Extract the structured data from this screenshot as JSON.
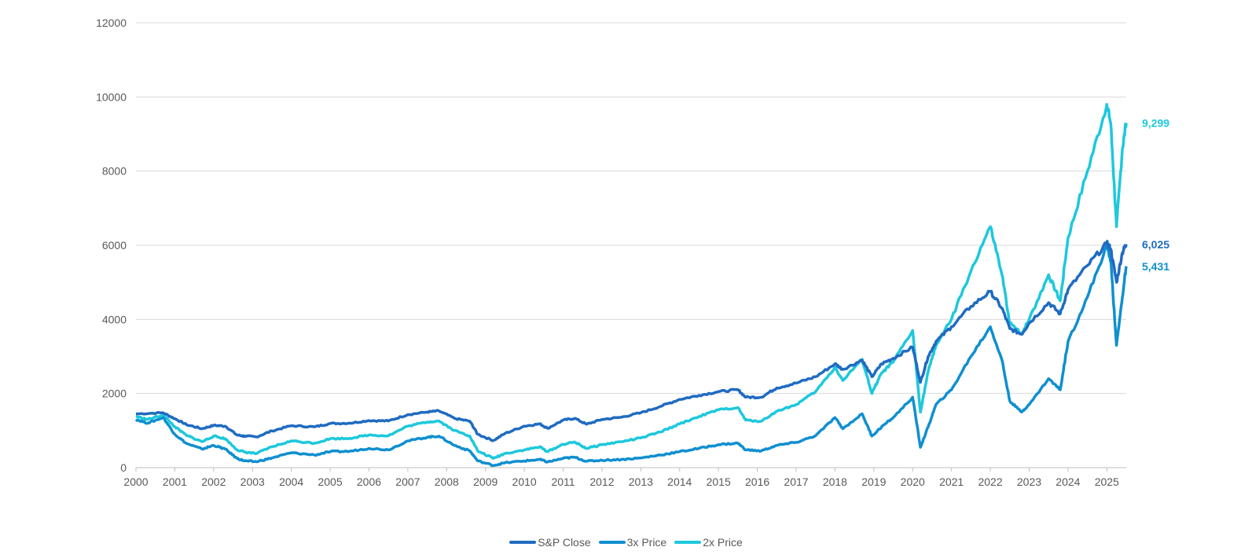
{
  "chart_data": {
    "type": "line",
    "title": "",
    "xlabel": "",
    "ylabel": "",
    "xlim": [
      2000,
      2025.5
    ],
    "ylim": [
      0,
      12000
    ],
    "y_ticks": [
      "0",
      "2000",
      "4000",
      "6000",
      "8000",
      "10000",
      "12000"
    ],
    "x_ticks": [
      "2000",
      "2001",
      "2002",
      "2003",
      "2004",
      "2005",
      "2006",
      "2007",
      "2008",
      "2009",
      "2010",
      "2011",
      "2012",
      "2013",
      "2014",
      "2015",
      "2016",
      "2017",
      "2018",
      "2019",
      "2020",
      "2021",
      "2022",
      "2023",
      "2024",
      "2025"
    ],
    "grid": "horizontal",
    "legend_position": "bottom",
    "series": [
      {
        "name": "S&P Close",
        "color": "#1f6bc1",
        "end_label": "6,025",
        "points": [
          [
            2000,
            1450
          ],
          [
            2000.7,
            1480
          ],
          [
            2001.0,
            1320
          ],
          [
            2001.3,
            1160
          ],
          [
            2001.7,
            1050
          ],
          [
            2002.0,
            1140
          ],
          [
            2002.3,
            1120
          ],
          [
            2002.6,
            880
          ],
          [
            2002.8,
            850
          ],
          [
            2003.1,
            830
          ],
          [
            2003.5,
            990
          ],
          [
            2004.0,
            1130
          ],
          [
            2004.6,
            1100
          ],
          [
            2005.0,
            1190
          ],
          [
            2005.5,
            1200
          ],
          [
            2006.0,
            1270
          ],
          [
            2006.5,
            1260
          ],
          [
            2007.0,
            1430
          ],
          [
            2007.5,
            1500
          ],
          [
            2007.8,
            1530
          ],
          [
            2008.2,
            1330
          ],
          [
            2008.6,
            1250
          ],
          [
            2008.8,
            900
          ],
          [
            2009.2,
            730
          ],
          [
            2009.5,
            920
          ],
          [
            2010.0,
            1120
          ],
          [
            2010.4,
            1180
          ],
          [
            2010.6,
            1060
          ],
          [
            2011.0,
            1280
          ],
          [
            2011.3,
            1330
          ],
          [
            2011.6,
            1170
          ],
          [
            2012.0,
            1300
          ],
          [
            2012.5,
            1360
          ],
          [
            2013.0,
            1480
          ],
          [
            2013.5,
            1650
          ],
          [
            2014.0,
            1840
          ],
          [
            2014.5,
            1950
          ],
          [
            2015.0,
            2050
          ],
          [
            2015.5,
            2100
          ],
          [
            2015.7,
            1900
          ],
          [
            2016.1,
            1900
          ],
          [
            2016.5,
            2150
          ],
          [
            2017.0,
            2280
          ],
          [
            2017.5,
            2450
          ],
          [
            2018.0,
            2800
          ],
          [
            2018.2,
            2650
          ],
          [
            2018.7,
            2900
          ],
          [
            2018.95,
            2450
          ],
          [
            2019.2,
            2800
          ],
          [
            2019.5,
            2950
          ],
          [
            2020.0,
            3250
          ],
          [
            2020.2,
            2300
          ],
          [
            2020.4,
            3000
          ],
          [
            2020.6,
            3400
          ],
          [
            2021.0,
            3800
          ],
          [
            2021.5,
            4350
          ],
          [
            2022.0,
            4750
          ],
          [
            2022.3,
            4300
          ],
          [
            2022.5,
            3750
          ],
          [
            2022.8,
            3600
          ],
          [
            2023.0,
            3900
          ],
          [
            2023.5,
            4450
          ],
          [
            2023.8,
            4150
          ],
          [
            2024.0,
            4800
          ],
          [
            2024.5,
            5450
          ],
          [
            2025.0,
            6050
          ],
          [
            2025.1,
            5900
          ],
          [
            2025.25,
            5000
          ],
          [
            2025.4,
            5800
          ],
          [
            2025.5,
            6025
          ]
        ]
      },
      {
        "name": "3x Price",
        "color": "#0f8fd0",
        "end_label": "5,431",
        "points": [
          [
            2000,
            1300
          ],
          [
            2000.3,
            1200
          ],
          [
            2000.7,
            1350
          ],
          [
            2001.0,
            900
          ],
          [
            2001.3,
            650
          ],
          [
            2001.7,
            500
          ],
          [
            2002.0,
            600
          ],
          [
            2002.3,
            500
          ],
          [
            2002.6,
            250
          ],
          [
            2002.8,
            180
          ],
          [
            2003.1,
            160
          ],
          [
            2003.5,
            260
          ],
          [
            2004.0,
            400
          ],
          [
            2004.6,
            340
          ],
          [
            2005.0,
            430
          ],
          [
            2005.5,
            440
          ],
          [
            2006.0,
            520
          ],
          [
            2006.5,
            480
          ],
          [
            2007.0,
            720
          ],
          [
            2007.5,
            820
          ],
          [
            2007.8,
            850
          ],
          [
            2008.2,
            600
          ],
          [
            2008.6,
            450
          ],
          [
            2008.8,
            180
          ],
          [
            2009.2,
            60
          ],
          [
            2009.5,
            130
          ],
          [
            2010.0,
            180
          ],
          [
            2010.4,
            220
          ],
          [
            2010.6,
            150
          ],
          [
            2011.0,
            250
          ],
          [
            2011.3,
            280
          ],
          [
            2011.6,
            170
          ],
          [
            2012.0,
            200
          ],
          [
            2012.5,
            220
          ],
          [
            2013.0,
            260
          ],
          [
            2013.5,
            340
          ],
          [
            2014.0,
            430
          ],
          [
            2014.5,
            520
          ],
          [
            2015.0,
            620
          ],
          [
            2015.5,
            660
          ],
          [
            2015.7,
            480
          ],
          [
            2016.1,
            450
          ],
          [
            2016.5,
            600
          ],
          [
            2017.0,
            680
          ],
          [
            2017.5,
            860
          ],
          [
            2018.0,
            1350
          ],
          [
            2018.2,
            1050
          ],
          [
            2018.7,
            1450
          ],
          [
            2018.95,
            850
          ],
          [
            2019.2,
            1100
          ],
          [
            2019.5,
            1350
          ],
          [
            2020.0,
            1900
          ],
          [
            2020.2,
            550
          ],
          [
            2020.4,
            1100
          ],
          [
            2020.6,
            1700
          ],
          [
            2021.0,
            2100
          ],
          [
            2021.5,
            3000
          ],
          [
            2022.0,
            3800
          ],
          [
            2022.3,
            2900
          ],
          [
            2022.5,
            1800
          ],
          [
            2022.8,
            1500
          ],
          [
            2023.0,
            1700
          ],
          [
            2023.5,
            2400
          ],
          [
            2023.8,
            2100
          ],
          [
            2024.0,
            3400
          ],
          [
            2024.5,
            4600
          ],
          [
            2025.0,
            6000
          ],
          [
            2025.1,
            5600
          ],
          [
            2025.25,
            3300
          ],
          [
            2025.4,
            4600
          ],
          [
            2025.5,
            5431
          ]
        ]
      },
      {
        "name": "2x Price",
        "color": "#1dc8dc",
        "end_label": "9,299",
        "points": [
          [
            2000,
            1380
          ],
          [
            2000.3,
            1300
          ],
          [
            2000.7,
            1420
          ],
          [
            2001.0,
            1100
          ],
          [
            2001.3,
            870
          ],
          [
            2001.7,
            700
          ],
          [
            2002.0,
            850
          ],
          [
            2002.3,
            780
          ],
          [
            2002.6,
            480
          ],
          [
            2002.8,
            420
          ],
          [
            2003.1,
            380
          ],
          [
            2003.5,
            560
          ],
          [
            2004.0,
            720
          ],
          [
            2004.6,
            660
          ],
          [
            2005.0,
            780
          ],
          [
            2005.5,
            790
          ],
          [
            2006.0,
            880
          ],
          [
            2006.5,
            860
          ],
          [
            2007.0,
            1120
          ],
          [
            2007.5,
            1230
          ],
          [
            2007.8,
            1260
          ],
          [
            2008.2,
            1000
          ],
          [
            2008.6,
            850
          ],
          [
            2008.8,
            450
          ],
          [
            2009.2,
            250
          ],
          [
            2009.5,
            380
          ],
          [
            2010.0,
            480
          ],
          [
            2010.4,
            560
          ],
          [
            2010.6,
            430
          ],
          [
            2011.0,
            630
          ],
          [
            2011.3,
            690
          ],
          [
            2011.6,
            520
          ],
          [
            2012.0,
            620
          ],
          [
            2012.5,
            700
          ],
          [
            2013.0,
            800
          ],
          [
            2013.5,
            960
          ],
          [
            2014.0,
            1180
          ],
          [
            2014.5,
            1380
          ],
          [
            2015.0,
            1560
          ],
          [
            2015.5,
            1620
          ],
          [
            2015.7,
            1280
          ],
          [
            2016.1,
            1250
          ],
          [
            2016.5,
            1520
          ],
          [
            2017.0,
            1700
          ],
          [
            2017.5,
            2050
          ],
          [
            2018.0,
            2700
          ],
          [
            2018.2,
            2350
          ],
          [
            2018.7,
            2920
          ],
          [
            2018.95,
            2000
          ],
          [
            2019.2,
            2550
          ],
          [
            2019.5,
            2850
          ],
          [
            2020.0,
            3700
          ],
          [
            2020.2,
            1500
          ],
          [
            2020.4,
            2600
          ],
          [
            2020.6,
            3300
          ],
          [
            2021.0,
            4000
          ],
          [
            2021.5,
            5300
          ],
          [
            2022.0,
            6500
          ],
          [
            2022.3,
            5200
          ],
          [
            2022.5,
            3900
          ],
          [
            2022.8,
            3600
          ],
          [
            2023.0,
            4000
          ],
          [
            2023.5,
            5200
          ],
          [
            2023.8,
            4500
          ],
          [
            2024.0,
            6200
          ],
          [
            2024.5,
            8000
          ],
          [
            2025.0,
            9800
          ],
          [
            2025.1,
            9300
          ],
          [
            2025.25,
            6500
          ],
          [
            2025.4,
            8600
          ],
          [
            2025.5,
            9299
          ]
        ]
      }
    ]
  }
}
